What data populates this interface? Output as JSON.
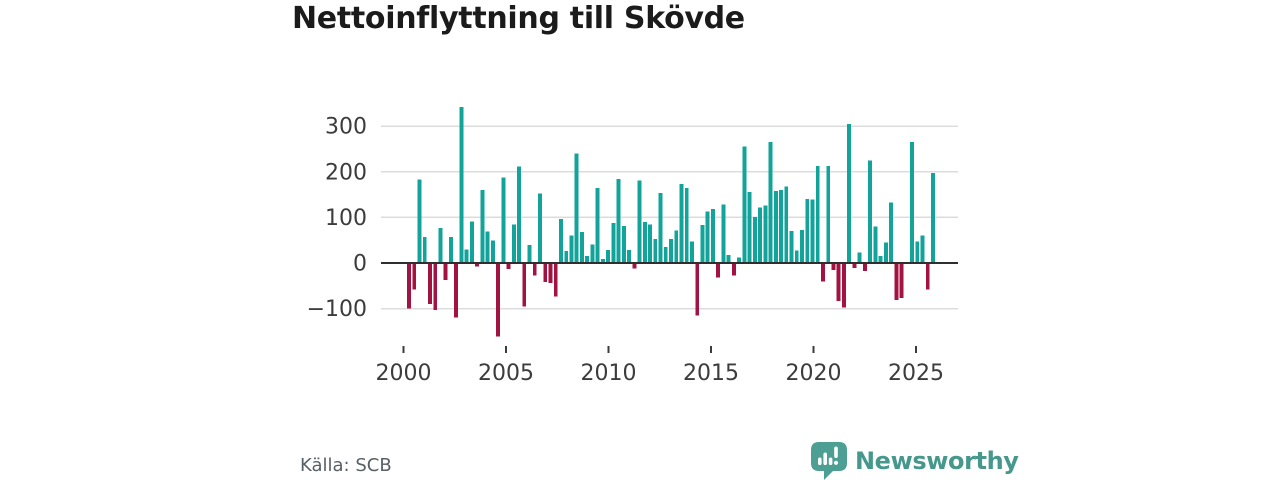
{
  "title": "Nettoinflyttning till Skövde",
  "source": "Källa: SCB",
  "brand": {
    "name": "Newsworthy"
  },
  "colors": {
    "positive": "#12a49b",
    "negative": "#a31342",
    "gridline": "#dcdcdc",
    "zero_line": "#2f2f2f",
    "axis_text": "#3c3c3c",
    "title_text": "#1b1b1b",
    "source_text": "#575f66",
    "brand_teal": "#45988b",
    "brand_icon": "#4c9f92",
    "background": "#ffffff"
  },
  "chart_data": {
    "type": "bar",
    "title": "Nettoinflyttning till Skövde",
    "xlabel": "",
    "ylabel": "",
    "x_start": "2000 Q1",
    "interval": "quarter",
    "grid": "horizontal-light-with-dark-zero-line",
    "legend_position": "none",
    "ylim": [
      -170,
      350
    ],
    "y_ticks": [
      300,
      200,
      100,
      0,
      -100
    ],
    "y_tick_labels": [
      "300",
      "200",
      "100",
      "0",
      "−100"
    ],
    "x_tick_years": [
      2000,
      2005,
      2010,
      2015,
      2020,
      2025
    ],
    "x_tick_labels": [
      "2000",
      "2005",
      "2010",
      "2015",
      "2020",
      "2025"
    ],
    "positive_color": "#12a49b",
    "negative_color": "#a31342",
    "values": [
      -100,
      -58,
      183,
      57,
      -90,
      -103,
      77,
      -37,
      57,
      -120,
      342,
      30,
      91,
      -8,
      160,
      69,
      49,
      -161,
      187,
      -13,
      84,
      212,
      -95,
      39,
      -27,
      152,
      -42,
      -44,
      -74,
      96,
      26,
      60,
      240,
      68,
      15,
      41,
      165,
      9,
      28,
      88,
      184,
      81,
      28,
      -12,
      181,
      90,
      84,
      53,
      154,
      35,
      53,
      71,
      173,
      164,
      47,
      -115,
      83,
      113,
      118,
      -32,
      128,
      18,
      -27,
      12,
      255,
      156,
      101,
      122,
      126,
      265,
      158,
      160,
      168,
      70,
      27,
      72,
      140,
      139,
      213,
      -41,
      213,
      -15,
      -83,
      -98,
      305,
      -11,
      23,
      -17,
      225,
      80,
      15,
      45,
      133,
      -81,
      -77,
      2,
      265,
      47,
      60,
      -58,
      197
    ]
  }
}
